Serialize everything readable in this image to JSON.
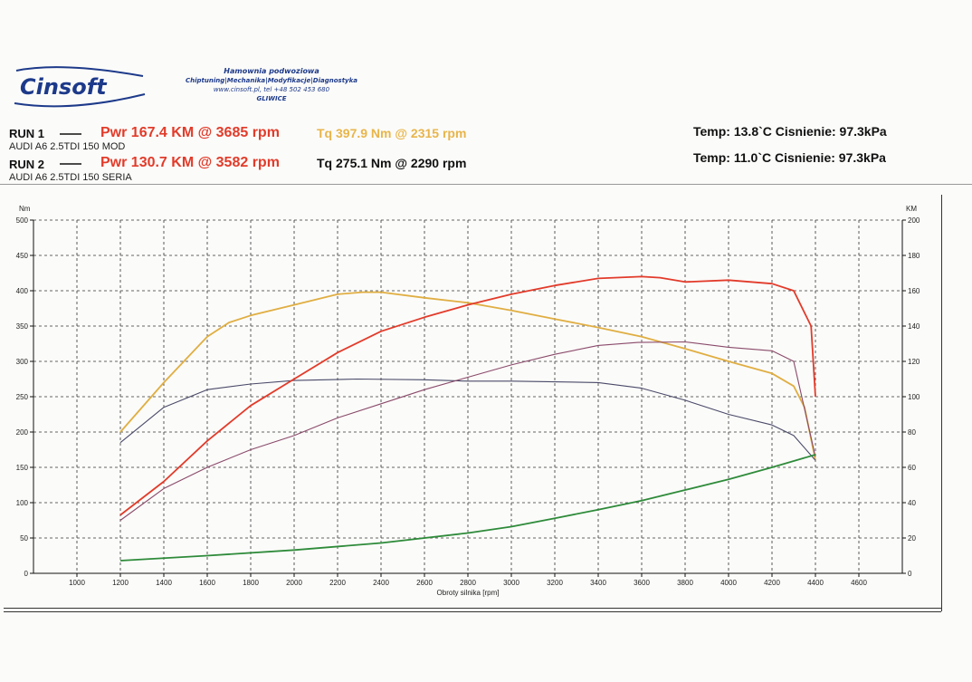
{
  "header": {
    "logo_text": "Cinsoft",
    "line1": "Hamownia podwoziowa",
    "line2": "Chiptuning|Mechanika|Modyfikacje|Diagnostyka",
    "line3": "www.cinsoft.pl, tel +48 502 453 680",
    "line4": "GLIWICE"
  },
  "runs": [
    {
      "label": "RUN 1",
      "car": "AUDI A6 2.5TDI 150 MOD",
      "pwr": "Pwr 167.4 KM @ 3685 rpm",
      "tq": "Tq 397.9 Nm @ 2315 rpm",
      "conditions": "Temp: 13.8`C  Cisnienie: 97.3kPa"
    },
    {
      "label": "RUN 2",
      "car": "AUDI A6 2.5TDI 150 SERIA",
      "pwr": "Pwr 130.7 KM @ 3582 rpm",
      "tq": "Tq 275.1 Nm @ 2290 rpm",
      "conditions": "Temp: 11.0`C  Cisnienie: 97.3kPa"
    }
  ],
  "colors": {
    "run1_power": "#e23b2a",
    "run1_torque": "#e0ae42",
    "run2_power": "#8a4a6a",
    "run2_torque": "#4a4a6a",
    "loss": "#2e8b3a"
  },
  "chart_data": {
    "type": "line",
    "xlabel": "Obroty silnika [rpm]",
    "ylabel_left": "Nm",
    "ylabel_right": "KM",
    "xlim": [
      800,
      4800
    ],
    "xticks": [
      1000,
      1200,
      1400,
      1600,
      1800,
      2000,
      2200,
      2400,
      2600,
      2800,
      3000,
      3200,
      3400,
      3600,
      3800,
      4000,
      4200,
      4400,
      4600
    ],
    "ylim_left": [
      0,
      500
    ],
    "yticks_left": [
      0,
      50,
      100,
      150,
      200,
      250,
      300,
      350,
      400,
      450,
      500
    ],
    "ylim_right": [
      0,
      200
    ],
    "yticks_right": [
      0,
      20,
      40,
      60,
      80,
      100,
      120,
      140,
      160,
      180,
      200
    ],
    "grid": true,
    "series": [
      {
        "axis": "left",
        "color": "#e0ae42",
        "x": [
          1200,
          1400,
          1600,
          1700,
          1800,
          2000,
          2200,
          2315,
          2400,
          2600,
          2800,
          3000,
          3200,
          3400,
          3600,
          3800,
          4000,
          4200,
          4300,
          4350,
          4400
        ],
        "y": [
          200,
          270,
          335,
          355,
          365,
          380,
          395,
          398,
          398,
          390,
          383,
          372,
          360,
          348,
          335,
          318,
          300,
          283,
          265,
          235,
          160
        ]
      },
      {
        "axis": "left",
        "color": "#4a4a6a",
        "x": [
          1200,
          1400,
          1600,
          1800,
          2000,
          2290,
          2600,
          2800,
          3000,
          3200,
          3400,
          3600,
          3800,
          4000,
          4200,
          4300,
          4400
        ],
        "y": [
          185,
          235,
          260,
          268,
          273,
          275,
          274,
          272,
          272,
          271,
          270,
          262,
          245,
          225,
          210,
          195,
          160
        ]
      },
      {
        "axis": "right",
        "color": "#e23b2a",
        "x": [
          1200,
          1400,
          1600,
          1800,
          2000,
          2200,
          2400,
          2600,
          2800,
          3000,
          3200,
          3400,
          3600,
          3685,
          3800,
          4000,
          4200,
          4300,
          4380,
          4400
        ],
        "y": [
          33,
          52,
          75,
          95,
          110,
          125,
          137,
          145,
          152,
          158,
          163,
          167,
          168,
          167.4,
          165,
          166,
          164,
          160,
          140,
          100
        ]
      },
      {
        "axis": "right",
        "color": "#8a4a6a",
        "x": [
          1200,
          1400,
          1600,
          1800,
          2000,
          2200,
          2400,
          2600,
          2800,
          3000,
          3200,
          3400,
          3582,
          3800,
          4000,
          4200,
          4300,
          4400
        ],
        "y": [
          30,
          48,
          60,
          70,
          78,
          88,
          96,
          104,
          111,
          118,
          124,
          129,
          130.7,
          131,
          128,
          126,
          120,
          66
        ]
      },
      {
        "axis": "left",
        "color": "#2e8b3a",
        "x": [
          1200,
          1600,
          2000,
          2400,
          2800,
          3000,
          3200,
          3400,
          3600,
          3800,
          4000,
          4200,
          4400
        ],
        "y": [
          18,
          25,
          33,
          43,
          57,
          66,
          78,
          90,
          103,
          118,
          133,
          150,
          168
        ]
      }
    ]
  }
}
